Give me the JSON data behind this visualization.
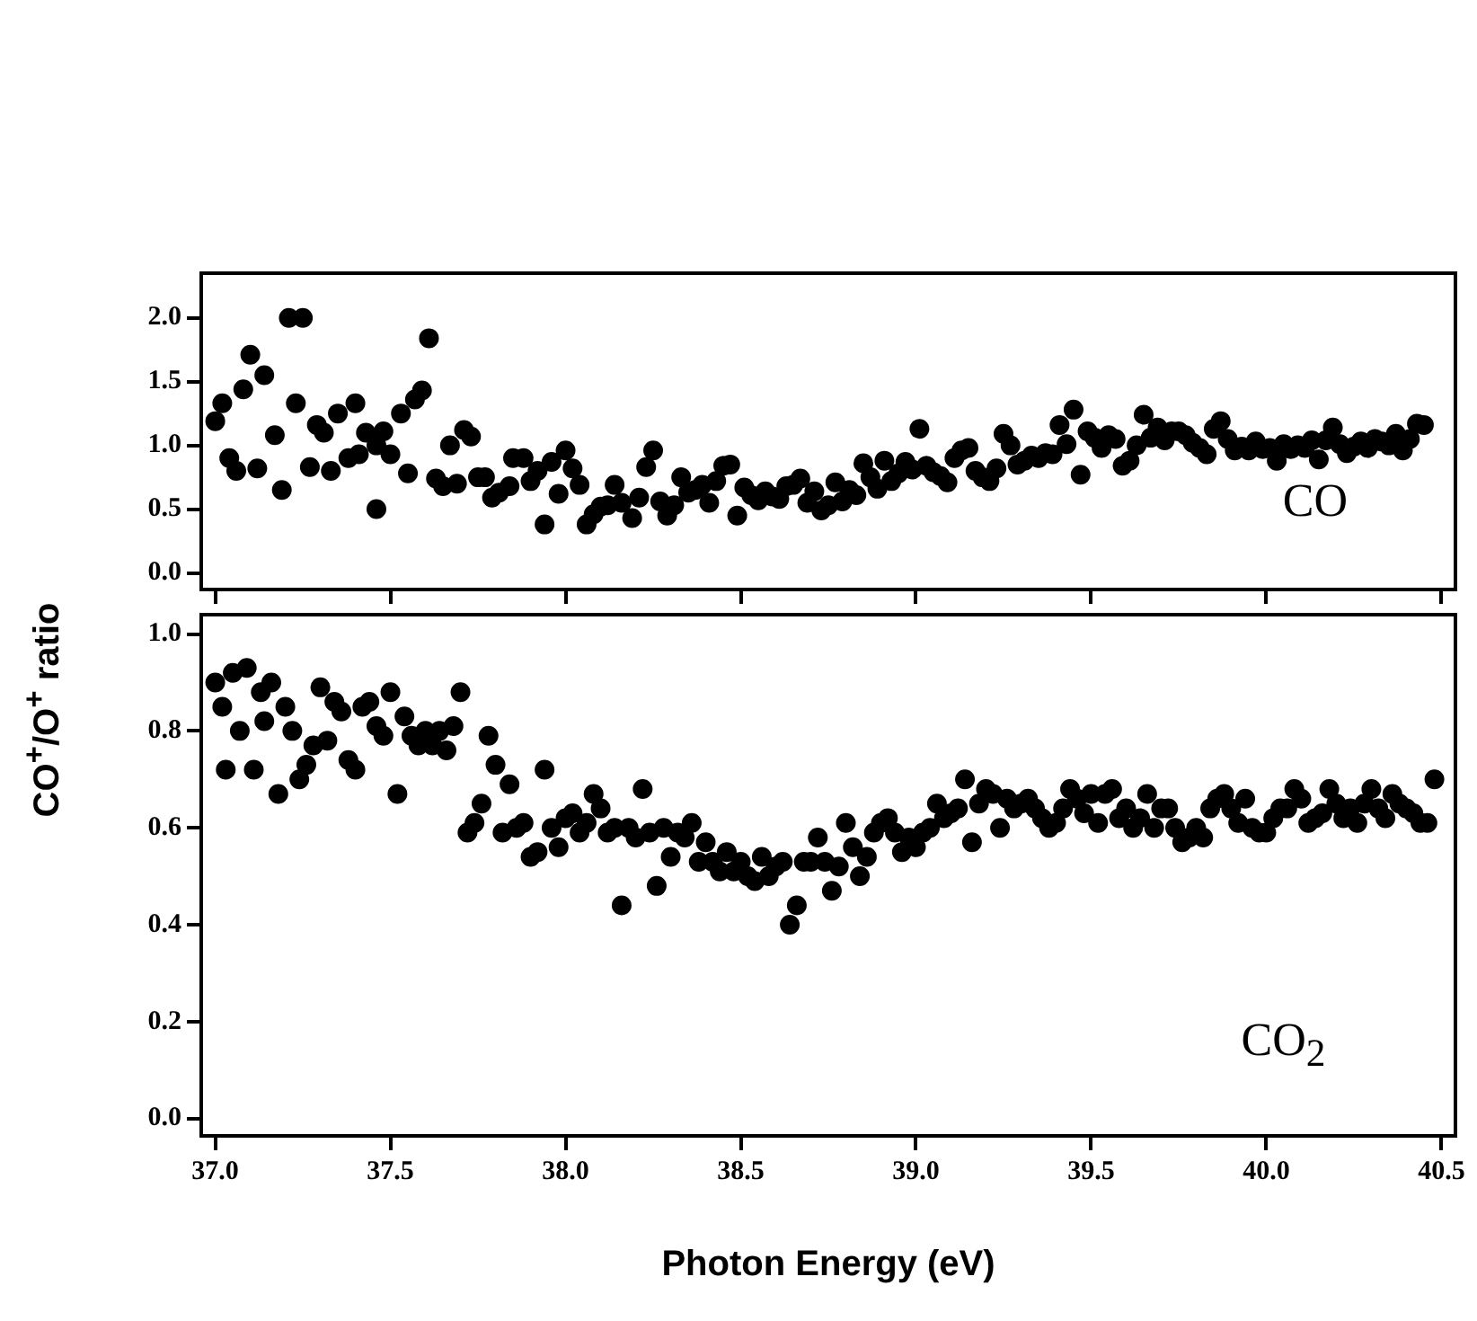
{
  "chart_data": [
    {
      "type": "scatter",
      "ylabel": "CO$^{+}$/O$^{+}$ ratio",
      "annotations": [
        "CO"
      ],
      "marker": "circle",
      "tick_labels": "y",
      "xlim": [
        36.96,
        40.54
      ],
      "ylim": [
        -0.13,
        2.35
      ],
      "xticks": [
        {
          "value": 37,
          "label": null
        },
        {
          "value": 37.5,
          "label": null
        },
        {
          "value": 38,
          "label": null
        },
        {
          "value": 38.5,
          "label": null
        },
        {
          "value": 39,
          "label": null
        },
        {
          "value": 39.5,
          "label": null
        },
        {
          "value": 40,
          "label": null
        },
        {
          "value": 40.5,
          "label": null
        }
      ],
      "yticks": [
        {
          "value": 0,
          "label": "0.0"
        },
        {
          "value": 0.5,
          "label": "0.5"
        },
        {
          "value": 1,
          "label": "1.0"
        },
        {
          "value": 1.5,
          "label": "1.5"
        },
        {
          "value": 2,
          "label": "2.0"
        }
      ],
      "series": [
        {
          "color": "#000000",
          "x": [
            37.0,
            37.02,
            37.04,
            37.06,
            37.08,
            37.1,
            37.12,
            37.14,
            37.17,
            37.19,
            37.21,
            37.25,
            37.23,
            37.27,
            37.29,
            37.31,
            37.33,
            37.35,
            37.38,
            37.4,
            37.41,
            37.43,
            37.46,
            37.46,
            37.48,
            37.5,
            37.53,
            37.55,
            37.57,
            37.59,
            37.61,
            37.63,
            37.65,
            37.67,
            37.69,
            37.71,
            37.73,
            37.75,
            37.77,
            37.79,
            37.81,
            37.84,
            37.85,
            37.88,
            37.9,
            37.92,
            37.94,
            37.96,
            37.98,
            38.0,
            38.02,
            38.04,
            38.06,
            38.08,
            38.1,
            38.12,
            38.14,
            38.16,
            38.19,
            38.21,
            38.23,
            38.25,
            38.27,
            38.29,
            38.31,
            38.33,
            38.35,
            38.37,
            38.39,
            38.41,
            38.43,
            38.45,
            38.47,
            38.49,
            38.51,
            38.53,
            38.55,
            38.57,
            38.59,
            38.61,
            38.63,
            38.65,
            38.67,
            38.69,
            38.71,
            38.73,
            38.75,
            38.77,
            38.79,
            38.81,
            38.83,
            38.85,
            38.87,
            38.89,
            38.91,
            38.93,
            38.95,
            38.97,
            38.99,
            39.01,
            39.03,
            39.05,
            39.07,
            39.09,
            39.11,
            39.13,
            39.15,
            39.17,
            39.19,
            39.21,
            39.23,
            39.25,
            39.27,
            39.29,
            39.31,
            39.33,
            39.35,
            39.37,
            39.39,
            39.41,
            39.43,
            39.45,
            39.47,
            39.49,
            39.51,
            39.53,
            39.55,
            39.57,
            39.59,
            39.61,
            39.63,
            39.65,
            39.67,
            39.69,
            39.71,
            39.73,
            39.75,
            39.77,
            39.79,
            39.81,
            39.83,
            39.85,
            39.87,
            39.89,
            39.91,
            39.93,
            39.95,
            39.97,
            39.99,
            40.01,
            40.03,
            40.05,
            40.07,
            40.09,
            40.11,
            40.13,
            40.15,
            40.17,
            40.19,
            40.21,
            40.23,
            40.25,
            40.27,
            40.29,
            40.31,
            40.33,
            40.35,
            40.37,
            40.39,
            40.41,
            40.43,
            40.45
          ],
          "values": [
            1.19,
            1.33,
            0.9,
            0.8,
            1.44,
            1.71,
            0.82,
            1.55,
            1.08,
            0.65,
            2.0,
            2.0,
            1.33,
            0.83,
            1.16,
            1.1,
            0.8,
            1.25,
            0.9,
            1.33,
            0.93,
            1.1,
            0.5,
            1.0,
            1.11,
            0.93,
            1.25,
            0.78,
            1.36,
            1.43,
            1.84,
            0.74,
            0.68,
            1.0,
            0.7,
            1.12,
            1.07,
            0.75,
            0.75,
            0.59,
            0.63,
            0.68,
            0.9,
            0.9,
            0.72,
            0.8,
            0.38,
            0.87,
            0.62,
            0.96,
            0.82,
            0.69,
            0.38,
            0.46,
            0.52,
            0.53,
            0.69,
            0.55,
            0.43,
            0.59,
            0.83,
            0.96,
            0.56,
            0.45,
            0.53,
            0.75,
            0.63,
            0.65,
            0.69,
            0.55,
            0.72,
            0.84,
            0.85,
            0.45,
            0.67,
            0.61,
            0.57,
            0.64,
            0.6,
            0.58,
            0.68,
            0.69,
            0.74,
            0.55,
            0.64,
            0.49,
            0.53,
            0.71,
            0.56,
            0.65,
            0.61,
            0.86,
            0.75,
            0.66,
            0.88,
            0.72,
            0.78,
            0.87,
            0.81,
            1.13,
            0.84,
            0.79,
            0.76,
            0.71,
            0.9,
            0.96,
            0.98,
            0.8,
            0.75,
            0.72,
            0.82,
            1.09,
            1.0,
            0.85,
            0.88,
            0.92,
            0.9,
            0.94,
            0.93,
            1.16,
            1.01,
            1.28,
            0.77,
            1.11,
            1.06,
            0.98,
            1.08,
            1.05,
            0.84,
            0.88,
            1.0,
            1.24,
            1.06,
            1.14,
            1.04,
            1.11,
            1.11,
            1.08,
            1.02,
            0.98,
            0.93,
            1.13,
            1.19,
            1.05,
            0.96,
            0.99,
            0.96,
            1.03,
            0.97,
            0.98,
            0.88,
            1.01,
            0.97,
            1.0,
            0.98,
            1.04,
            0.89,
            1.04,
            1.14,
            1.01,
            0.94,
            0.99,
            1.03,
            0.98,
            1.05,
            1.03,
            1.0,
            1.09,
            0.96,
            1.05,
            1.17,
            1.16
          ]
        }
      ]
    },
    {
      "type": "scatter",
      "xlabel": "Photon Energy (eV)",
      "annotations": [
        "CO$_{2}$"
      ],
      "marker": "circle",
      "xlim": [
        36.96,
        40.54
      ],
      "ylim": [
        -0.036,
        1.04
      ],
      "xticks": [
        {
          "value": 37,
          "label": "37.0"
        },
        {
          "value": 37.5,
          "label": "37.5"
        },
        {
          "value": 38,
          "label": "38.0"
        },
        {
          "value": 38.5,
          "label": "38.5"
        },
        {
          "value": 39,
          "label": "39.0"
        },
        {
          "value": 39.5,
          "label": "39.5"
        },
        {
          "value": 40,
          "label": "40.0"
        },
        {
          "value": 40.5,
          "label": "40.5"
        }
      ],
      "yticks": [
        {
          "value": 0,
          "label": "0.0"
        },
        {
          "value": 0.2,
          "label": "0.2"
        },
        {
          "value": 0.4,
          "label": "0.4"
        },
        {
          "value": 0.6,
          "label": "0.6"
        },
        {
          "value": 0.8,
          "label": "0.8"
        },
        {
          "value": 1,
          "label": "1.0"
        }
      ],
      "series": [
        {
          "color": "#000000",
          "x": [
            37.0,
            37.02,
            37.03,
            37.05,
            37.07,
            37.09,
            37.11,
            37.13,
            37.14,
            37.16,
            37.18,
            37.2,
            37.22,
            37.24,
            37.26,
            37.28,
            37.3,
            37.32,
            37.34,
            37.36,
            37.38,
            37.4,
            37.42,
            37.44,
            37.46,
            37.48,
            37.5,
            37.52,
            37.54,
            37.56,
            37.58,
            37.6,
            37.62,
            37.64,
            37.66,
            37.68,
            37.7,
            37.72,
            37.74,
            37.76,
            37.78,
            37.8,
            37.82,
            37.84,
            37.86,
            37.88,
            37.9,
            37.92,
            37.94,
            37.96,
            37.98,
            38.0,
            38.02,
            38.04,
            38.06,
            38.08,
            38.1,
            38.12,
            38.14,
            38.16,
            38.18,
            38.2,
            38.22,
            38.24,
            38.26,
            38.28,
            38.3,
            38.32,
            38.34,
            38.36,
            38.38,
            38.4,
            38.42,
            38.44,
            38.46,
            38.48,
            38.5,
            38.52,
            38.54,
            38.56,
            38.58,
            38.6,
            38.62,
            38.64,
            38.66,
            38.68,
            38.7,
            38.72,
            38.74,
            38.76,
            38.78,
            38.8,
            38.82,
            38.84,
            38.86,
            38.88,
            38.9,
            38.92,
            38.94,
            38.96,
            38.98,
            39.0,
            39.02,
            39.04,
            39.06,
            39.08,
            39.1,
            39.12,
            39.14,
            39.16,
            39.18,
            39.2,
            39.22,
            39.24,
            39.26,
            39.28,
            39.3,
            39.32,
            39.34,
            39.36,
            39.38,
            39.4,
            39.42,
            39.44,
            39.46,
            39.48,
            39.5,
            39.52,
            39.54,
            39.56,
            39.58,
            39.6,
            39.62,
            39.64,
            39.66,
            39.68,
            39.7,
            39.72,
            39.74,
            39.76,
            39.78,
            39.8,
            39.82,
            39.84,
            39.86,
            39.88,
            39.9,
            39.92,
            39.94,
            39.96,
            39.98,
            40.0,
            40.02,
            40.04,
            40.06,
            40.08,
            40.1,
            40.12,
            40.14,
            40.16,
            40.18,
            40.2,
            40.22,
            40.24,
            40.26,
            40.28,
            40.3,
            40.32,
            40.34,
            40.36,
            40.38,
            40.4,
            40.42,
            40.44,
            40.46,
            40.48
          ],
          "values": [
            0.9,
            0.85,
            0.72,
            0.92,
            0.8,
            0.93,
            0.72,
            0.88,
            0.82,
            0.9,
            0.67,
            0.85,
            0.8,
            0.7,
            0.73,
            0.77,
            0.89,
            0.78,
            0.86,
            0.84,
            0.74,
            0.72,
            0.85,
            0.86,
            0.81,
            0.79,
            0.88,
            0.67,
            0.83,
            0.79,
            0.77,
            0.8,
            0.77,
            0.8,
            0.76,
            0.81,
            0.88,
            0.59,
            0.61,
            0.65,
            0.79,
            0.73,
            0.59,
            0.69,
            0.6,
            0.61,
            0.54,
            0.55,
            0.72,
            0.6,
            0.56,
            0.62,
            0.63,
            0.59,
            0.61,
            0.67,
            0.64,
            0.59,
            0.6,
            0.44,
            0.6,
            0.58,
            0.68,
            0.59,
            0.48,
            0.6,
            0.54,
            0.59,
            0.58,
            0.61,
            0.53,
            0.57,
            0.53,
            0.51,
            0.55,
            0.51,
            0.53,
            0.5,
            0.49,
            0.54,
            0.5,
            0.52,
            0.53,
            0.4,
            0.44,
            0.53,
            0.53,
            0.58,
            0.53,
            0.47,
            0.52,
            0.61,
            0.56,
            0.5,
            0.54,
            0.59,
            0.61,
            0.62,
            0.59,
            0.55,
            0.58,
            0.56,
            0.59,
            0.6,
            0.65,
            0.62,
            0.63,
            0.64,
            0.7,
            0.57,
            0.65,
            0.68,
            0.67,
            0.6,
            0.66,
            0.64,
            0.65,
            0.66,
            0.64,
            0.62,
            0.6,
            0.61,
            0.64,
            0.68,
            0.66,
            0.63,
            0.67,
            0.61,
            0.67,
            0.68,
            0.62,
            0.64,
            0.6,
            0.62,
            0.67,
            0.6,
            0.64,
            0.64,
            0.6,
            0.57,
            0.58,
            0.6,
            0.58,
            0.64,
            0.66,
            0.67,
            0.64,
            0.61,
            0.66,
            0.6,
            0.59,
            0.59,
            0.62,
            0.64,
            0.64,
            0.68,
            0.66,
            0.61,
            0.62,
            0.63,
            0.68,
            0.65,
            0.62,
            0.64,
            0.61,
            0.65,
            0.68,
            0.64,
            0.62,
            0.67,
            0.65,
            0.64,
            0.63,
            0.61,
            0.61,
            0.7
          ]
        }
      ]
    }
  ]
}
